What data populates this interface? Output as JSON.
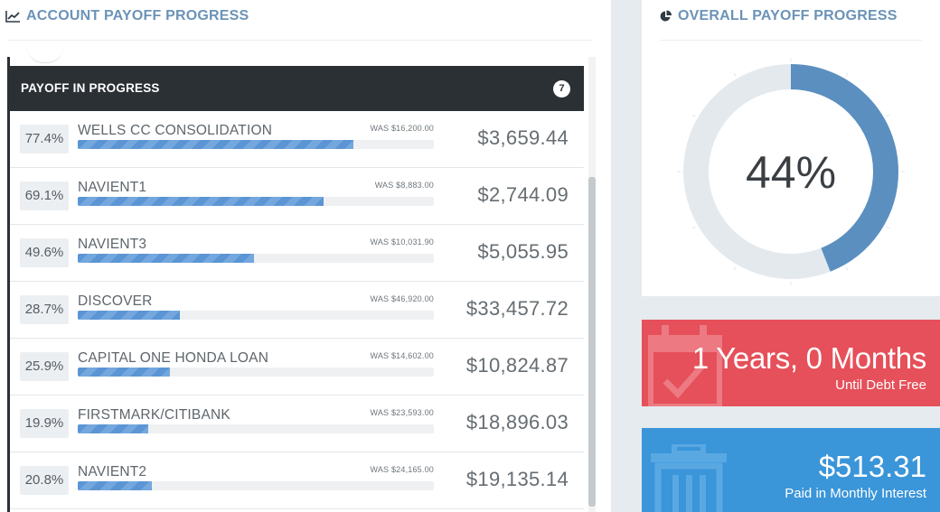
{
  "account_progress": {
    "title": "ACCOUNT PAYOFF PROGRESS",
    "icon": "line-chart-icon",
    "list_title": "PAYOFF IN PROGRESS",
    "count": "7",
    "accounts": [
      {
        "percent_label": "77.4%",
        "percent": 77.4,
        "name": "WELLS CC CONSOLIDATION",
        "was": "WAS $16,200.00",
        "balance": "$3,659.44"
      },
      {
        "percent_label": "69.1%",
        "percent": 69.1,
        "name": "NAVIENT1",
        "was": "WAS $8,883.00",
        "balance": "$2,744.09"
      },
      {
        "percent_label": "49.6%",
        "percent": 49.6,
        "name": "NAVIENT3",
        "was": "WAS $10,031.90",
        "balance": "$5,055.95"
      },
      {
        "percent_label": "28.7%",
        "percent": 28.7,
        "name": "DISCOVER",
        "was": "WAS $46,920.00",
        "balance": "$33,457.72"
      },
      {
        "percent_label": "25.9%",
        "percent": 25.9,
        "name": "CAPITAL ONE HONDA LOAN",
        "was": "WAS $14,602.00",
        "balance": "$10,824.87"
      },
      {
        "percent_label": "19.9%",
        "percent": 19.9,
        "name": "FIRSTMARK/CITIBANK",
        "was": "WAS $23,593.00",
        "balance": "$18,896.03"
      },
      {
        "percent_label": "20.8%",
        "percent": 20.8,
        "name": "NAVIENT2",
        "was": "WAS $24,165.00",
        "balance": "$19,135.14"
      }
    ]
  },
  "overall_progress": {
    "title": "OVERALL PAYOFF PROGRESS",
    "icon": "pie-chart-icon",
    "percent_label": "44%",
    "percent": 44,
    "colors": {
      "fill": "#5b8fc0",
      "track": "#e4e9ee"
    }
  },
  "debt_free": {
    "value": "1 Years, 0 Months",
    "label": "Until Debt Free",
    "icon": "calendar-check-icon",
    "color": "#e5505a"
  },
  "interest": {
    "value": "$513.31",
    "label": "Paid in Monthly Interest",
    "icon": "trash-icon",
    "color": "#3a95d9"
  }
}
